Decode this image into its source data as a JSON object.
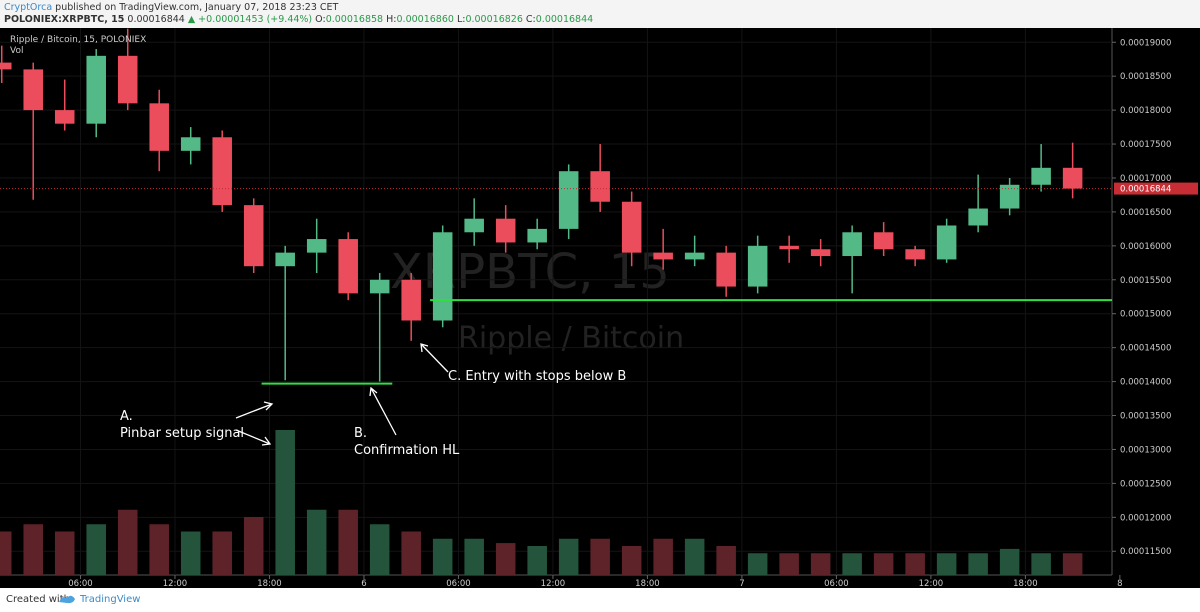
{
  "header": {
    "author": "CryptOrca",
    "published": "published on TradingView.com, January 07, 2018 23:23 CET",
    "symbol": "POLONIEX:XRPBTC, 15",
    "last": "0.00016844",
    "change": "▲ +0.00001453 (+9.44%)",
    "open_label": "O:",
    "open": "0.00016858",
    "high_label": "H:",
    "high": "0.00016860",
    "low_label": "L:",
    "low": "0.00016826",
    "close_label": "C:",
    "close": "0.00016844"
  },
  "chart_data": {
    "type": "candlestick",
    "title": "Ripple / Bitcoin, 15, POLONIEX",
    "volume_label": "Vol",
    "watermark": "XRPBTC, 15",
    "watermark_name": "Ripple / Bitcoin",
    "up_color": "#53b987",
    "down_color": "#eb4d5c",
    "up_volume_color": "#24543c",
    "down_volume_color": "#5e2329",
    "grid": true,
    "x": [
      1,
      3,
      5,
      7,
      9,
      11,
      13,
      15,
      17,
      19,
      21,
      23,
      25,
      27,
      29,
      31,
      33,
      35,
      37,
      39,
      41,
      43,
      45,
      47,
      49,
      51,
      53,
      55,
      57,
      59,
      61,
      63,
      65,
      67,
      69
    ],
    "open": [
      0.000187,
      0.000186,
      0.00018,
      0.000178,
      0.000188,
      0.000181,
      0.000174,
      0.000176,
      0.000166,
      0.000157,
      0.000159,
      0.000161,
      0.000153,
      0.000155,
      0.000149,
      0.000162,
      0.000164,
      0.0001605,
      0.0001625,
      0.000171,
      0.0001665,
      0.000159,
      0.000158,
      0.000159,
      0.000154,
      0.00016,
      0.0001595,
      0.0001585,
      0.000162,
      0.0001595,
      0.000158,
      0.000163,
      0.0001655,
      0.000169,
      0.0001715
    ],
    "high": [
      0.0001895,
      0.000187,
      0.0001845,
      0.000189,
      0.000192,
      0.000183,
      0.0001775,
      0.000177,
      0.000167,
      0.00016,
      0.000164,
      0.000162,
      0.000156,
      0.000156,
      0.000163,
      0.000167,
      0.000166,
      0.000164,
      0.000172,
      0.000175,
      0.000168,
      0.0001625,
      0.0001615,
      0.00016,
      0.0001615,
      0.0001615,
      0.000161,
      0.000163,
      0.0001635,
      0.00016,
      0.000164,
      0.0001705,
      0.00017,
      0.000175,
      0.0001752
    ],
    "low": [
      0.000184,
      0.0001668,
      0.000177,
      0.000176,
      0.00018,
      0.000171,
      0.000172,
      0.000165,
      0.000156,
      0.0001402,
      0.000156,
      0.000152,
      0.00014,
      0.000146,
      0.000148,
      0.00016,
      0.000159,
      0.0001595,
      0.000161,
      0.000165,
      0.000157,
      0.0001565,
      0.000157,
      0.0001525,
      0.000153,
      0.0001575,
      0.000157,
      0.000153,
      0.0001585,
      0.000157,
      0.0001575,
      0.000162,
      0.0001645,
      0.000168,
      0.000167
    ],
    "close": [
      0.000186,
      0.00018,
      0.000178,
      0.000188,
      0.000181,
      0.000174,
      0.000176,
      0.000166,
      0.000157,
      0.000159,
      0.000161,
      0.000153,
      0.000155,
      0.000149,
      0.000162,
      0.000164,
      0.0001605,
      0.0001625,
      0.000171,
      0.0001665,
      0.000159,
      0.000158,
      0.000159,
      0.000154,
      0.00016,
      0.0001595,
      0.0001585,
      0.000162,
      0.0001595,
      0.000158,
      0.000163,
      0.0001655,
      0.000169,
      0.0001715,
      0.00016844
    ],
    "volume": [
      30,
      35,
      30,
      35,
      45,
      35,
      30,
      30,
      40,
      100,
      45,
      45,
      35,
      30,
      25,
      25,
      22,
      20,
      25,
      25,
      20,
      25,
      25,
      20,
      15,
      15,
      15,
      15,
      15,
      15,
      15,
      15,
      18,
      15,
      15
    ],
    "volume_lim": [
      0,
      100
    ],
    "last_price": 0.00016844,
    "last_price_color": "#c62d35",
    "support_lines": [
      {
        "price": 0.0001397,
        "from": 17.5,
        "to": 25.8
      },
      {
        "price": 0.000152,
        "from": 28.2,
        "to": 71.5
      }
    ],
    "support_color": "#33dd44",
    "xlim": [
      0.89,
      71.5
    ],
    "xticks": [
      {
        "value": 6,
        "label": "06:00"
      },
      {
        "value": 12,
        "label": "12:00"
      },
      {
        "value": 18,
        "label": "18:00"
      },
      {
        "value": 24,
        "label": "6"
      },
      {
        "value": 30,
        "label": "06:00"
      },
      {
        "value": 36,
        "label": "12:00"
      },
      {
        "value": 42,
        "label": "18:00"
      },
      {
        "value": 48,
        "label": "7"
      },
      {
        "value": 54,
        "label": "06:00"
      },
      {
        "value": 60,
        "label": "12:00"
      },
      {
        "value": 66,
        "label": "18:00"
      },
      {
        "value": 72,
        "label": "8"
      }
    ],
    "ylim": [
      0.0001115,
      0.0001921
    ],
    "yticks": [
      {
        "value": 0.00019,
        "label": "0.00019000"
      },
      {
        "value": 0.000185,
        "label": "0.00018500"
      },
      {
        "value": 0.00018,
        "label": "0.00018000"
      },
      {
        "value": 0.000175,
        "label": "0.00017500"
      },
      {
        "value": 0.00017,
        "label": "0.00017000"
      },
      {
        "value": 0.000165,
        "label": "0.00016500"
      },
      {
        "value": 0.00016,
        "label": "0.00016000"
      },
      {
        "value": 0.000155,
        "label": "0.00015500"
      },
      {
        "value": 0.00015,
        "label": "0.00015000"
      },
      {
        "value": 0.000145,
        "label": "0.00014500"
      },
      {
        "value": 0.00014,
        "label": "0.00014000"
      },
      {
        "value": 0.000135,
        "label": "0.00013500"
      },
      {
        "value": 0.00013,
        "label": "0.00013000"
      },
      {
        "value": 0.000125,
        "label": "0.00012500"
      },
      {
        "value": 0.00012,
        "label": "0.00012000"
      },
      {
        "value": 0.000115,
        "label": "0.00011500"
      }
    ]
  },
  "annotations": [
    [
      "A.",
      "Pinbar setup signal"
    ],
    [
      "B.",
      "Confirmation HL"
    ],
    [
      "C. Entry with stops below B"
    ]
  ],
  "footer": {
    "created": "Created with",
    "brand": "TradingView"
  }
}
